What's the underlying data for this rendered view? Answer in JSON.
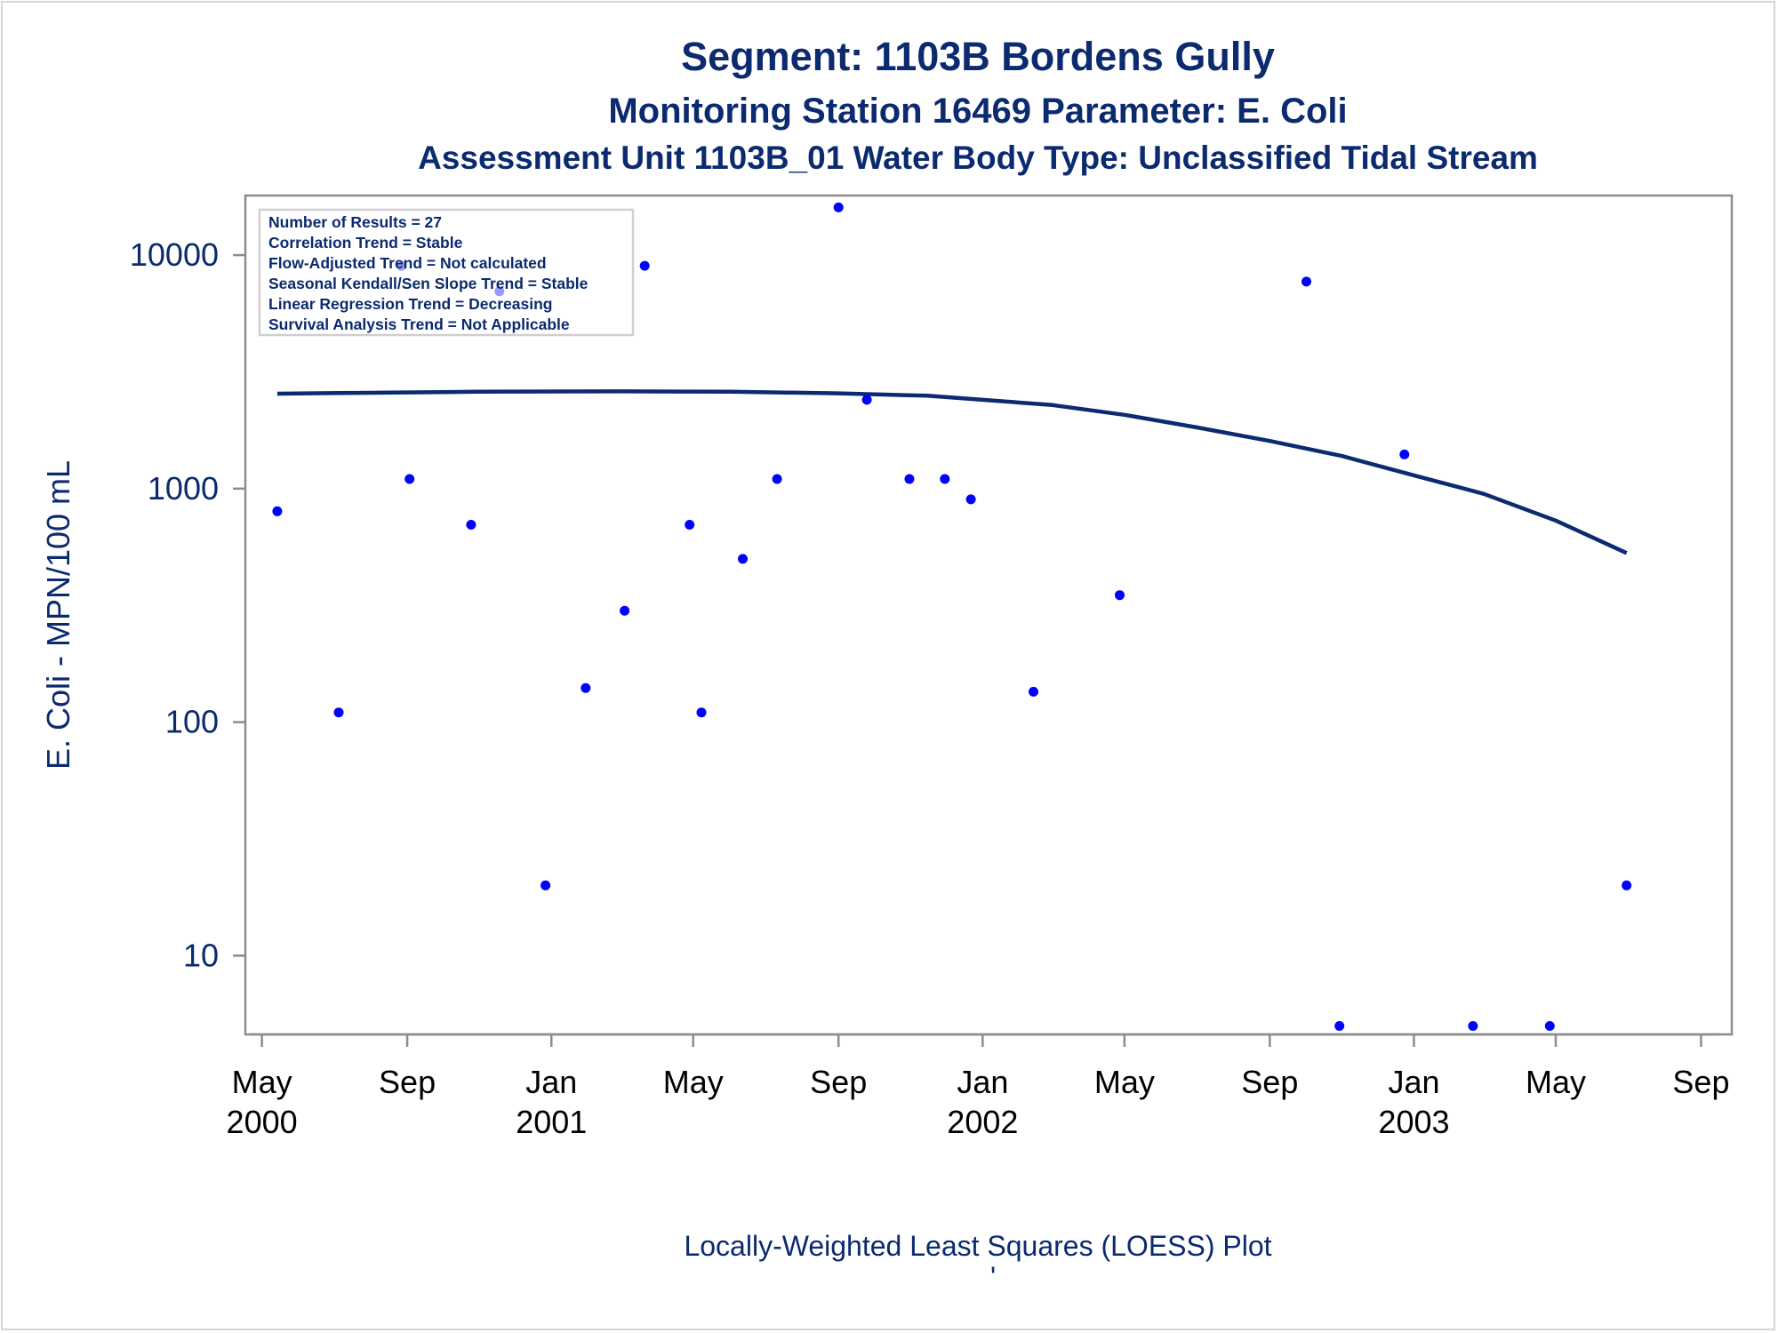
{
  "titles": {
    "line1": "Segment: 1103B  Bordens Gully",
    "line2": "Monitoring Station 16469 Parameter: E. Coli",
    "line3": "Assessment Unit 1103B_01   Water Body Type: Unclassified Tidal Stream"
  },
  "footnote": "Locally-Weighted Least Squares (LOESS) Plot",
  "footnote_mark": "'",
  "stats_box": [
    "Number of Results = 27",
    "Correlation Trend = Stable",
    "Flow-Adjusted Trend = Not calculated",
    "Seasonal Kendall/Sen Slope Trend = Stable",
    "Linear Regression Trend = Decreasing",
    "Survival Analysis Trend = Not Applicable"
  ],
  "colors": {
    "points": "#0000ff",
    "loess_line": "#0b2a6f",
    "axis": "#8c8c8c",
    "text": "#0b2a6f"
  },
  "chart_data": {
    "type": "scatter",
    "title": "Segment: 1103B  Bordens Gully",
    "xlabel": "",
    "ylabel": "E. Coli - MPN/100 mL",
    "yscale": "log",
    "ylim": [
      4.6,
      18000
    ],
    "xlim": [
      "2000-04-17",
      "2003-09-27"
    ],
    "yticks": [
      10,
      100,
      1000,
      10000
    ],
    "ytick_labels": [
      "10",
      "100",
      "1000",
      "10000"
    ],
    "xticks": [
      "2000-05-01",
      "2000-09-01",
      "2001-01-01",
      "2001-05-01",
      "2001-09-01",
      "2002-01-01",
      "2002-05-01",
      "2002-09-01",
      "2003-01-01",
      "2003-05-01",
      "2003-09-01"
    ],
    "xtick_labels": [
      [
        "May",
        "2000"
      ],
      [
        "Sep",
        ""
      ],
      [
        "Jan",
        "2001"
      ],
      [
        "May",
        ""
      ],
      [
        "Sep",
        ""
      ],
      [
        "Jan",
        "2002"
      ],
      [
        "May",
        ""
      ],
      [
        "Sep",
        ""
      ],
      [
        "Jan",
        "2003"
      ],
      [
        "May",
        ""
      ],
      [
        "Sep",
        ""
      ]
    ],
    "grid": false,
    "series": [
      {
        "kind": "points",
        "points": [
          {
            "x": "2000-05-14",
            "y": 800
          },
          {
            "x": "2000-07-05",
            "y": 110
          },
          {
            "x": "2000-08-27",
            "y": 9000
          },
          {
            "x": "2000-09-03",
            "y": 1100
          },
          {
            "x": "2000-10-25",
            "y": 700
          },
          {
            "x": "2000-11-18",
            "y": 7000
          },
          {
            "x": "2000-12-27",
            "y": 20
          },
          {
            "x": "2001-01-30",
            "y": 140
          },
          {
            "x": "2001-03-04",
            "y": 300
          },
          {
            "x": "2001-03-21",
            "y": 9000
          },
          {
            "x": "2001-04-28",
            "y": 700
          },
          {
            "x": "2001-05-08",
            "y": 110
          },
          {
            "x": "2001-06-12",
            "y": 500
          },
          {
            "x": "2001-07-11",
            "y": 1100
          },
          {
            "x": "2001-09-01",
            "y": 16000
          },
          {
            "x": "2001-09-25",
            "y": 2400
          },
          {
            "x": "2001-10-31",
            "y": 1100
          },
          {
            "x": "2001-11-30",
            "y": 1100
          },
          {
            "x": "2001-12-22",
            "y": 900
          },
          {
            "x": "2002-02-13",
            "y": 135
          },
          {
            "x": "2002-04-27",
            "y": 350
          },
          {
            "x": "2002-10-02",
            "y": 7700
          },
          {
            "x": "2002-10-30",
            "y": 5
          },
          {
            "x": "2002-12-24",
            "y": 1400
          },
          {
            "x": "2003-02-20",
            "y": 5
          },
          {
            "x": "2003-04-26",
            "y": 5
          },
          {
            "x": "2003-06-30",
            "y": 20
          }
        ]
      },
      {
        "kind": "loess",
        "points": [
          {
            "x": "2000-05-14",
            "y": 2550
          },
          {
            "x": "2000-07-20",
            "y": 2570
          },
          {
            "x": "2000-11-01",
            "y": 2600
          },
          {
            "x": "2001-03-01",
            "y": 2610
          },
          {
            "x": "2001-06-01",
            "y": 2600
          },
          {
            "x": "2001-09-01",
            "y": 2560
          },
          {
            "x": "2001-11-15",
            "y": 2500
          },
          {
            "x": "2002-01-01",
            "y": 2400
          },
          {
            "x": "2002-03-01",
            "y": 2280
          },
          {
            "x": "2002-05-01",
            "y": 2070
          },
          {
            "x": "2002-07-01",
            "y": 1830
          },
          {
            "x": "2002-09-01",
            "y": 1600
          },
          {
            "x": "2002-11-01",
            "y": 1380
          },
          {
            "x": "2003-01-01",
            "y": 1140
          },
          {
            "x": "2003-03-01",
            "y": 950
          },
          {
            "x": "2003-05-01",
            "y": 730
          },
          {
            "x": "2003-06-30",
            "y": 530
          }
        ]
      }
    ]
  }
}
